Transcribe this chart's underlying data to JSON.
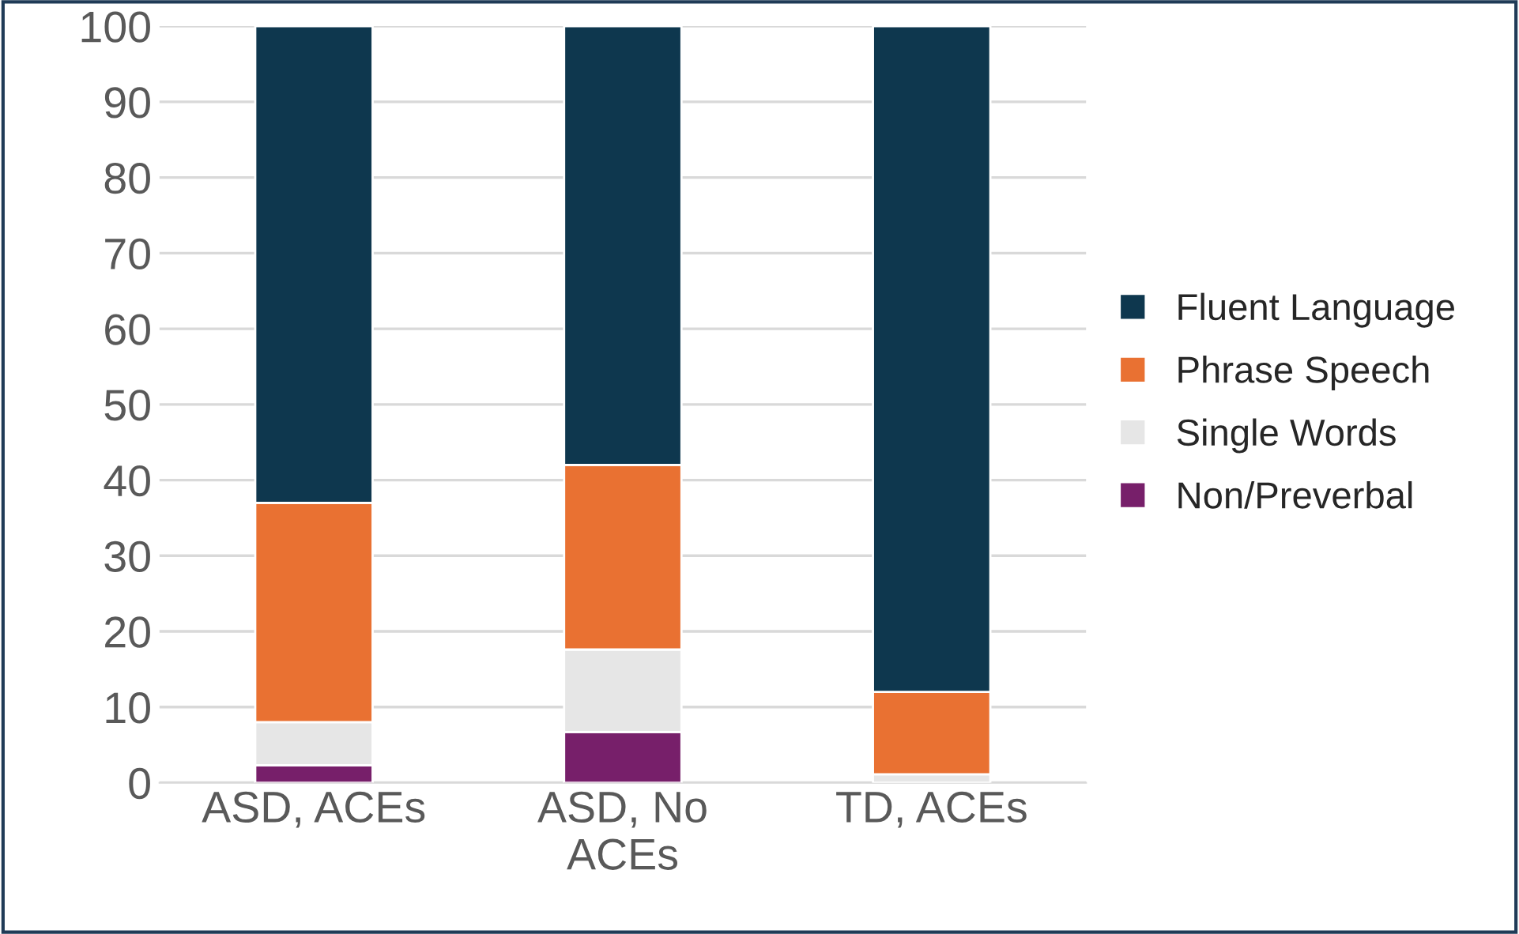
{
  "chart_data": {
    "type": "bar",
    "stacked": true,
    "categories": [
      "ASD, ACEs",
      "ASD, No\nACEs",
      "TD, ACEs"
    ],
    "series": [
      {
        "name": "Non/Preverbal",
        "color": "#771f6a",
        "values": [
          2.3,
          6.7,
          0
        ]
      },
      {
        "name": "Single Words",
        "color": "#e6e6e6",
        "values": [
          5.7,
          10.9,
          1.1
        ]
      },
      {
        "name": "Phrase Speech",
        "color": "#e97132",
        "values": [
          29,
          24.4,
          10.9
        ]
      },
      {
        "name": "Fluent Language",
        "color": "#0e374e",
        "values": [
          63,
          58,
          88
        ]
      }
    ],
    "ylim": [
      0,
      100
    ],
    "yticks": [
      0,
      10,
      20,
      30,
      40,
      50,
      60,
      70,
      80,
      90,
      100
    ],
    "grid": "y",
    "legend": "right"
  }
}
